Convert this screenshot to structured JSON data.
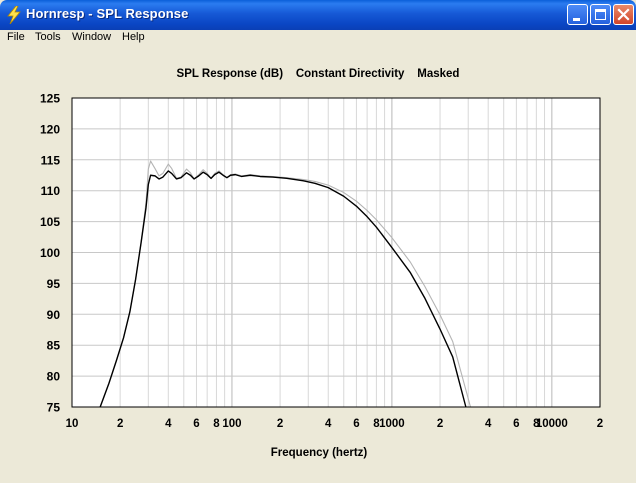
{
  "window": {
    "title": "Hornresp - SPL Response",
    "menu": [
      "File",
      "Tools",
      "Window",
      "Help"
    ]
  },
  "colors": {
    "titlebar": "#0a46c4",
    "primary_trace": "#000000",
    "secondary_trace": "#b4b4b4",
    "grid": "#c8c8c8",
    "background": "#ece9d8"
  },
  "chart_data": {
    "type": "line",
    "title": "SPL Response (dB)    Constant Directivity    Masked",
    "xlabel": "Frequency (hertz)",
    "ylabel": "",
    "x_scale": "log",
    "xlim": [
      10,
      20000
    ],
    "ylim": [
      75,
      125
    ],
    "yticks": [
      75,
      80,
      85,
      90,
      95,
      100,
      105,
      110,
      115,
      120,
      125
    ],
    "xtick_labels": [
      {
        "f": 10,
        "label": "10"
      },
      {
        "f": 20,
        "label": "2"
      },
      {
        "f": 40,
        "label": "4"
      },
      {
        "f": 60,
        "label": "6"
      },
      {
        "f": 80,
        "label": "8"
      },
      {
        "f": 100,
        "label": "100"
      },
      {
        "f": 200,
        "label": "2"
      },
      {
        "f": 400,
        "label": "4"
      },
      {
        "f": 600,
        "label": "6"
      },
      {
        "f": 800,
        "label": "8"
      },
      {
        "f": 1000,
        "label": "1000"
      },
      {
        "f": 2000,
        "label": "2"
      },
      {
        "f": 4000,
        "label": "4"
      },
      {
        "f": 6000,
        "label": "6"
      },
      {
        "f": 8000,
        "label": "8"
      },
      {
        "f": 10000,
        "label": "10000"
      },
      {
        "f": 20000,
        "label": "2"
      }
    ],
    "grid": true,
    "series": [
      {
        "x": [
          15,
          17,
          19,
          21,
          23,
          25,
          27,
          29,
          30,
          31,
          33,
          35,
          37,
          40,
          42,
          45,
          48,
          52,
          55,
          58,
          62,
          66,
          70,
          74,
          78,
          83,
          88,
          93,
          98,
          105,
          115,
          130,
          150,
          180,
          220,
          280,
          330,
          400,
          500,
          600,
          700,
          800,
          1000,
          1300,
          1600,
          2000,
          2400,
          2900
        ],
        "y": [
          75,
          78.8,
          82.6,
          86.2,
          90.4,
          95.7,
          101.5,
          107.2,
          111,
          112.5,
          112.4,
          111.9,
          112.2,
          113.2,
          112.8,
          111.9,
          112.1,
          112.9,
          112.5,
          111.9,
          112.4,
          113.0,
          112.6,
          112.0,
          112.6,
          113.0,
          112.5,
          112.1,
          112.5,
          112.6,
          112.3,
          112.5,
          112.3,
          112.2,
          112.0,
          111.6,
          111.2,
          110.5,
          109.1,
          107.5,
          105.8,
          104.1,
          100.8,
          96.8,
          92.7,
          87.6,
          83.1,
          75
        ]
      },
      {
        "x": [
          15,
          17,
          19,
          21,
          23,
          25,
          27,
          29,
          30,
          31,
          33,
          35,
          37,
          40,
          42,
          45,
          48,
          52,
          55,
          58,
          62,
          66,
          70,
          74,
          78,
          83,
          88,
          93,
          98,
          105,
          115,
          130,
          150,
          180,
          220,
          280,
          330,
          400,
          500,
          600,
          700,
          800,
          1000,
          1300,
          1600,
          2000,
          2400,
          3100
        ],
        "y": [
          75,
          78.8,
          82.6,
          86.2,
          90.4,
          95.7,
          101.5,
          108,
          113.5,
          114.8,
          113.6,
          112.4,
          112.8,
          114.3,
          113.6,
          112.0,
          112.2,
          113.5,
          112.9,
          111.9,
          112.6,
          113.4,
          112.8,
          112.0,
          112.8,
          113.2,
          112.6,
          112.1,
          112.6,
          112.7,
          112.4,
          112.6,
          112.4,
          112.3,
          112.1,
          111.8,
          111.5,
          110.9,
          109.7,
          108.3,
          106.8,
          105.3,
          102.4,
          98.5,
          94.6,
          89.9,
          85.6,
          75
        ]
      }
    ]
  }
}
